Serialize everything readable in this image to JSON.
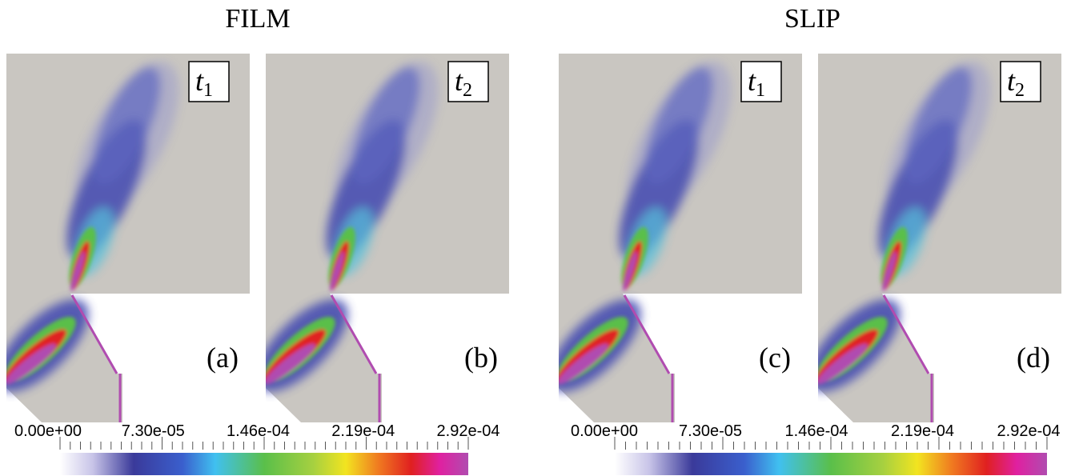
{
  "groups": [
    {
      "title": "FILM",
      "panels": [
        {
          "time": {
            "symbol": "t",
            "subscript": "1"
          },
          "label": "(a)"
        },
        {
          "time": {
            "symbol": "t",
            "subscript": "2"
          },
          "label": "(b)"
        }
      ],
      "colorbar": {
        "ticks": [
          "0.00e+00",
          "7.30e-05",
          "1.46e-04",
          "2.19e-04",
          "2.92e-04"
        ]
      }
    },
    {
      "title": "SLIP",
      "panels": [
        {
          "time": {
            "symbol": "t",
            "subscript": "1"
          },
          "label": "(c)"
        },
        {
          "time": {
            "symbol": "t",
            "subscript": "2"
          },
          "label": "(d)"
        }
      ],
      "colorbar": {
        "ticks": [
          "0.00e+00",
          "7.30e-05",
          "1.46e-04",
          "2.19e-04",
          "2.92e-04"
        ]
      }
    }
  ]
}
